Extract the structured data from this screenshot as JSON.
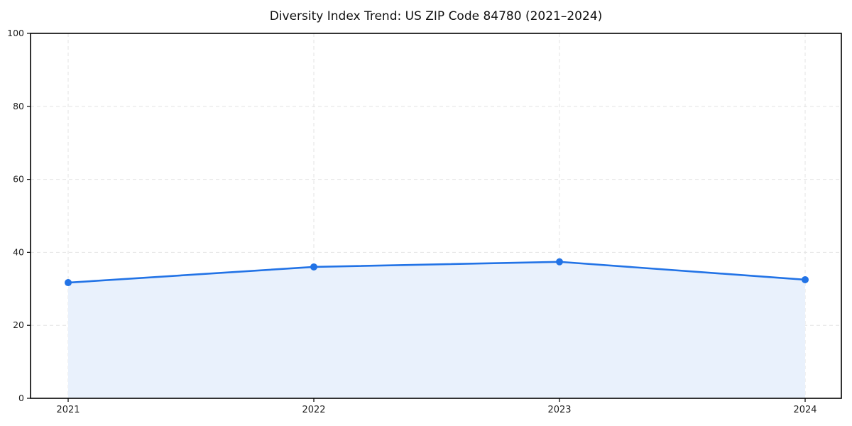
{
  "chart_data": {
    "type": "area",
    "title": "Diversity Index Trend: US ZIP Code 84780 (2021–2024)",
    "x": [
      "2021",
      "2022",
      "2023",
      "2024"
    ],
    "series": [
      {
        "name": "Diversity Index",
        "values": [
          31.7,
          36.0,
          37.4,
          32.5
        ]
      }
    ],
    "xlabel": "",
    "ylabel": "",
    "ylim": [
      0,
      100
    ],
    "yticks": [
      0,
      20,
      40,
      60,
      80,
      100
    ],
    "grid": "dashed-both",
    "legend_position": "none",
    "colors": {
      "line": "#2273e6",
      "marker": "#2273e6",
      "fill": "#e9f1fc",
      "grid": "#e3e3e3",
      "axis": "#000000",
      "tick_label": "#222222",
      "title": "#111111"
    }
  }
}
